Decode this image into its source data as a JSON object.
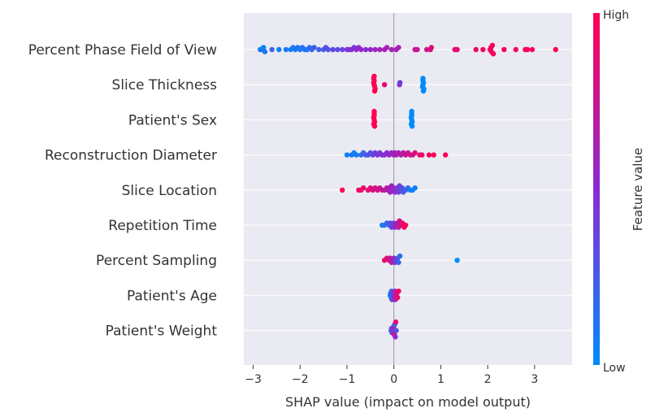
{
  "chart_data": {
    "type": "scatter",
    "subtype": "shap-beeswarm",
    "xlabel": "SHAP value (impact on model output)",
    "xlim": [
      -3.2,
      3.8
    ],
    "xticks": [
      {
        "value": -3,
        "label": "−3"
      },
      {
        "value": -2,
        "label": "−2"
      },
      {
        "value": -1,
        "label": "−1"
      },
      {
        "value": 0,
        "label": "0"
      },
      {
        "value": 1,
        "label": "1"
      },
      {
        "value": 2,
        "label": "2"
      },
      {
        "value": 3,
        "label": "3"
      }
    ],
    "grid": "horizontal",
    "colorbar": {
      "title": "Feature value",
      "high_label": "High",
      "low_label": "Low",
      "low_color": "#008bfb",
      "mid_color": "#8b2bd2",
      "high_color": "#ff0052"
    },
    "background_color": "#eaeaf2",
    "features": [
      {
        "name": "Percent Phase Field of View",
        "points": [
          [
            -2.85,
            0.05
          ],
          [
            -2.8,
            0.15
          ],
          [
            -2.78,
            0.05
          ],
          [
            -2.75,
            0.1
          ],
          [
            -2.6,
            0.2
          ],
          [
            -2.45,
            0.05
          ],
          [
            -2.3,
            0.1
          ],
          [
            -2.2,
            0.05
          ],
          [
            -2.15,
            0.1
          ],
          [
            -2.1,
            0.08
          ],
          [
            -2.05,
            0.12
          ],
          [
            -2.0,
            0.1
          ],
          [
            -1.95,
            0.15
          ],
          [
            -1.9,
            0.12
          ],
          [
            -1.85,
            0.1
          ],
          [
            -1.8,
            0.15
          ],
          [
            -1.75,
            0.2
          ],
          [
            -1.7,
            0.25
          ],
          [
            -1.6,
            0.2
          ],
          [
            -1.5,
            0.25
          ],
          [
            -1.45,
            0.3
          ],
          [
            -1.4,
            0.3
          ],
          [
            -1.3,
            0.35
          ],
          [
            -1.2,
            0.3
          ],
          [
            -1.1,
            0.4
          ],
          [
            -1.0,
            0.4
          ],
          [
            -0.95,
            0.45
          ],
          [
            -0.9,
            0.5
          ],
          [
            -0.85,
            0.45
          ],
          [
            -0.8,
            0.5
          ],
          [
            -0.75,
            0.5
          ],
          [
            -0.7,
            0.55
          ],
          [
            -0.6,
            0.5
          ],
          [
            -0.5,
            0.55
          ],
          [
            -0.4,
            0.55
          ],
          [
            -0.3,
            0.6
          ],
          [
            -0.2,
            0.6
          ],
          [
            -0.15,
            0.6
          ],
          [
            -0.05,
            0.62
          ],
          [
            0.05,
            0.6
          ],
          [
            0.1,
            0.62
          ],
          [
            0.45,
            0.75
          ],
          [
            0.5,
            0.72
          ],
          [
            0.7,
            0.8
          ],
          [
            0.78,
            0.82
          ],
          [
            0.8,
            0.85
          ],
          [
            1.3,
            0.9
          ],
          [
            1.35,
            0.9
          ],
          [
            1.75,
            0.92
          ],
          [
            1.9,
            0.95
          ],
          [
            2.05,
            0.95
          ],
          [
            2.07,
            0.97
          ],
          [
            2.08,
            0.96
          ],
          [
            2.1,
            0.98
          ],
          [
            2.12,
            0.97
          ],
          [
            2.35,
            0.95
          ],
          [
            2.6,
            0.95
          ],
          [
            2.8,
            0.98
          ],
          [
            2.85,
            0.97
          ],
          [
            2.95,
            0.98
          ],
          [
            3.45,
            1.0
          ]
        ]
      },
      {
        "name": "Slice Thickness",
        "points": [
          [
            -0.42,
            1.0
          ],
          [
            -0.43,
            1.0
          ],
          [
            -0.41,
            1.0
          ],
          [
            -0.42,
            1.0
          ],
          [
            -0.4,
            1.0
          ],
          [
            -0.43,
            1.0
          ],
          [
            -0.41,
            1.0
          ],
          [
            -0.42,
            1.0
          ],
          [
            -0.2,
            0.9
          ],
          [
            0.12,
            0.5
          ],
          [
            0.13,
            0.4
          ],
          [
            0.62,
            0.0
          ],
          [
            0.63,
            0.0
          ],
          [
            0.61,
            0.0
          ],
          [
            0.62,
            0.0
          ],
          [
            0.64,
            0.0
          ],
          [
            0.62,
            0.0
          ],
          [
            0.63,
            0.0
          ]
        ]
      },
      {
        "name": "Patient's Sex",
        "points": [
          [
            -0.42,
            1.0
          ],
          [
            -0.43,
            1.0
          ],
          [
            -0.41,
            1.0
          ],
          [
            -0.42,
            1.0
          ],
          [
            -0.43,
            1.0
          ],
          [
            -0.42,
            1.0
          ],
          [
            -0.41,
            1.0
          ],
          [
            -0.42,
            1.0
          ],
          [
            0.38,
            0.0
          ],
          [
            0.37,
            0.0
          ],
          [
            0.39,
            0.0
          ],
          [
            0.38,
            0.0
          ],
          [
            0.37,
            0.0
          ],
          [
            0.38,
            0.0
          ],
          [
            0.39,
            0.0
          ],
          [
            0.38,
            0.0
          ]
        ]
      },
      {
        "name": "Reconstruction Diameter",
        "points": [
          [
            -1.0,
            0.05
          ],
          [
            -0.9,
            0.1
          ],
          [
            -0.85,
            0.05
          ],
          [
            -0.8,
            0.1
          ],
          [
            -0.7,
            0.15
          ],
          [
            -0.65,
            0.2
          ],
          [
            -0.6,
            0.25
          ],
          [
            -0.55,
            0.3
          ],
          [
            -0.5,
            0.3
          ],
          [
            -0.45,
            0.35
          ],
          [
            -0.4,
            0.4
          ],
          [
            -0.35,
            0.45
          ],
          [
            -0.3,
            0.4
          ],
          [
            -0.25,
            0.45
          ],
          [
            -0.2,
            0.5
          ],
          [
            -0.15,
            0.5
          ],
          [
            -0.1,
            0.55
          ],
          [
            -0.05,
            0.5
          ],
          [
            0.0,
            0.55
          ],
          [
            0.02,
            0.6
          ],
          [
            0.05,
            0.6
          ],
          [
            0.1,
            0.65
          ],
          [
            0.15,
            0.65
          ],
          [
            0.2,
            0.7
          ],
          [
            0.25,
            0.75
          ],
          [
            0.3,
            0.75
          ],
          [
            0.35,
            0.8
          ],
          [
            0.4,
            0.8
          ],
          [
            0.45,
            0.85
          ],
          [
            0.55,
            0.9
          ],
          [
            0.6,
            0.92
          ],
          [
            0.75,
            0.95
          ],
          [
            0.85,
            0.97
          ],
          [
            1.1,
            1.0
          ]
        ]
      },
      {
        "name": "Slice Location",
        "points": [
          [
            -1.1,
            1.0
          ],
          [
            -0.75,
            0.95
          ],
          [
            -0.7,
            0.9
          ],
          [
            -0.65,
            0.92
          ],
          [
            -0.55,
            0.9
          ],
          [
            -0.5,
            0.85
          ],
          [
            -0.45,
            0.85
          ],
          [
            -0.4,
            0.8
          ],
          [
            -0.35,
            0.8
          ],
          [
            -0.3,
            0.75
          ],
          [
            -0.25,
            0.75
          ],
          [
            -0.2,
            0.7
          ],
          [
            -0.15,
            0.7
          ],
          [
            -0.12,
            0.65
          ],
          [
            -0.1,
            0.65
          ],
          [
            -0.08,
            0.6
          ],
          [
            -0.05,
            0.6
          ],
          [
            -0.02,
            0.55
          ],
          [
            0.0,
            0.55
          ],
          [
            0.02,
            0.5
          ],
          [
            0.05,
            0.5
          ],
          [
            0.07,
            0.45
          ],
          [
            0.1,
            0.4
          ],
          [
            0.12,
            0.4
          ],
          [
            0.15,
            0.35
          ],
          [
            0.18,
            0.3
          ],
          [
            0.2,
            0.25
          ],
          [
            0.25,
            0.2
          ],
          [
            0.3,
            0.15
          ],
          [
            0.35,
            0.1
          ],
          [
            0.4,
            0.05
          ],
          [
            0.45,
            0.05
          ]
        ]
      },
      {
        "name": "Repetition Time",
        "points": [
          [
            -0.25,
            0.1
          ],
          [
            -0.2,
            0.1
          ],
          [
            -0.15,
            0.2
          ],
          [
            -0.1,
            0.25
          ],
          [
            -0.08,
            0.3
          ],
          [
            -0.05,
            0.35
          ],
          [
            -0.03,
            0.4
          ],
          [
            0.0,
            0.45
          ],
          [
            0.02,
            0.5
          ],
          [
            0.05,
            0.55
          ],
          [
            0.08,
            0.6
          ],
          [
            0.1,
            0.7
          ],
          [
            0.12,
            0.8
          ],
          [
            0.15,
            0.85
          ],
          [
            0.18,
            0.9
          ],
          [
            0.22,
            0.95
          ],
          [
            0.25,
            1.0
          ]
        ]
      },
      {
        "name": "Percent Sampling",
        "points": [
          [
            -0.2,
            0.9
          ],
          [
            -0.15,
            0.85
          ],
          [
            -0.1,
            0.85
          ],
          [
            -0.08,
            0.75
          ],
          [
            -0.05,
            0.7
          ],
          [
            -0.02,
            0.6
          ],
          [
            0.0,
            0.55
          ],
          [
            0.02,
            0.5
          ],
          [
            0.05,
            0.4
          ],
          [
            0.08,
            0.3
          ],
          [
            0.1,
            0.2
          ],
          [
            0.13,
            0.15
          ],
          [
            1.35,
            0.0
          ]
        ]
      },
      {
        "name": "Patient's Age",
        "points": [
          [
            -0.08,
            0.05
          ],
          [
            -0.07,
            0.1
          ],
          [
            -0.06,
            0.1
          ],
          [
            -0.05,
            0.2
          ],
          [
            -0.04,
            0.3
          ],
          [
            -0.03,
            0.3
          ],
          [
            -0.02,
            0.4
          ],
          [
            0.0,
            0.5
          ],
          [
            0.02,
            0.6
          ],
          [
            0.03,
            0.7
          ],
          [
            0.05,
            0.75
          ],
          [
            0.06,
            0.8
          ],
          [
            0.08,
            0.9
          ],
          [
            0.1,
            0.95
          ]
        ]
      },
      {
        "name": "Patient's Weight",
        "points": [
          [
            -0.06,
            0.3
          ],
          [
            -0.05,
            0.1
          ],
          [
            -0.04,
            0.5
          ],
          [
            -0.03,
            0.2
          ],
          [
            -0.02,
            0.7
          ],
          [
            -0.01,
            0.4
          ],
          [
            0.0,
            0.6
          ],
          [
            0.01,
            0.8
          ],
          [
            0.02,
            0.1
          ],
          [
            0.03,
            0.5
          ],
          [
            0.04,
            0.9
          ],
          [
            0.05,
            0.3
          ]
        ]
      }
    ]
  }
}
